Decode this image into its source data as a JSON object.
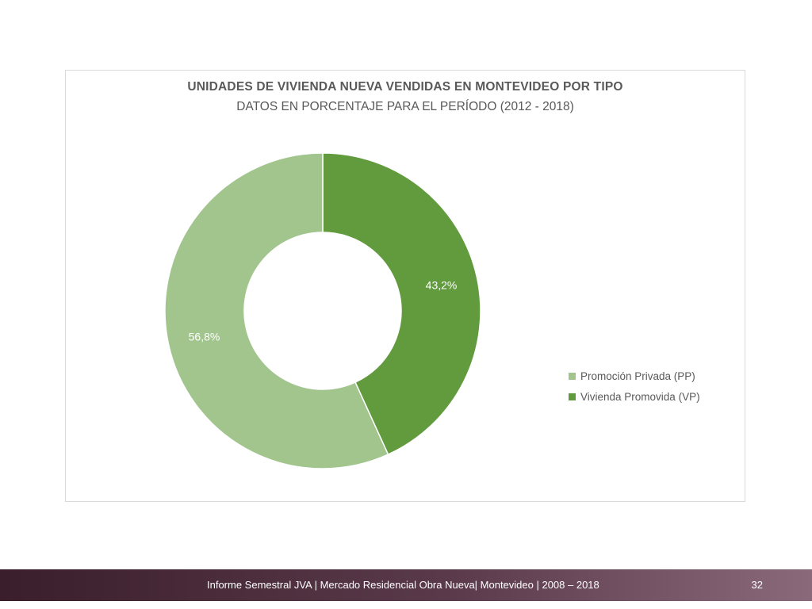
{
  "chart_data": {
    "type": "pie",
    "variant": "donut",
    "title": "UNIDADES DE VIVIENDA NUEVA VENDIDAS EN MONTEVIDEO POR TIPO",
    "subtitle": "DATOS EN PORCENTAJE PARA EL PERÍODO (2012 - 2018)",
    "categories": [
      "Vivienda Promovida (VP)",
      "Promoción Privada (PP)"
    ],
    "values": [
      43.2,
      56.8
    ],
    "data_labels": [
      "43,2%",
      "56,8%"
    ],
    "colors": [
      "#619b3d",
      "#a2c58e"
    ],
    "legend": {
      "placement": "right",
      "items": [
        {
          "label": "Promoción Privada (PP)",
          "color": "#a2c58e"
        },
        {
          "label": "Vivienda Promovida (VP)",
          "color": "#619b3d"
        }
      ]
    }
  },
  "footer": {
    "text": "Informe Semestral JVA | Mercado Residencial Obra Nueva| Montevideo | 2008 – 2018",
    "page_number": "32"
  }
}
